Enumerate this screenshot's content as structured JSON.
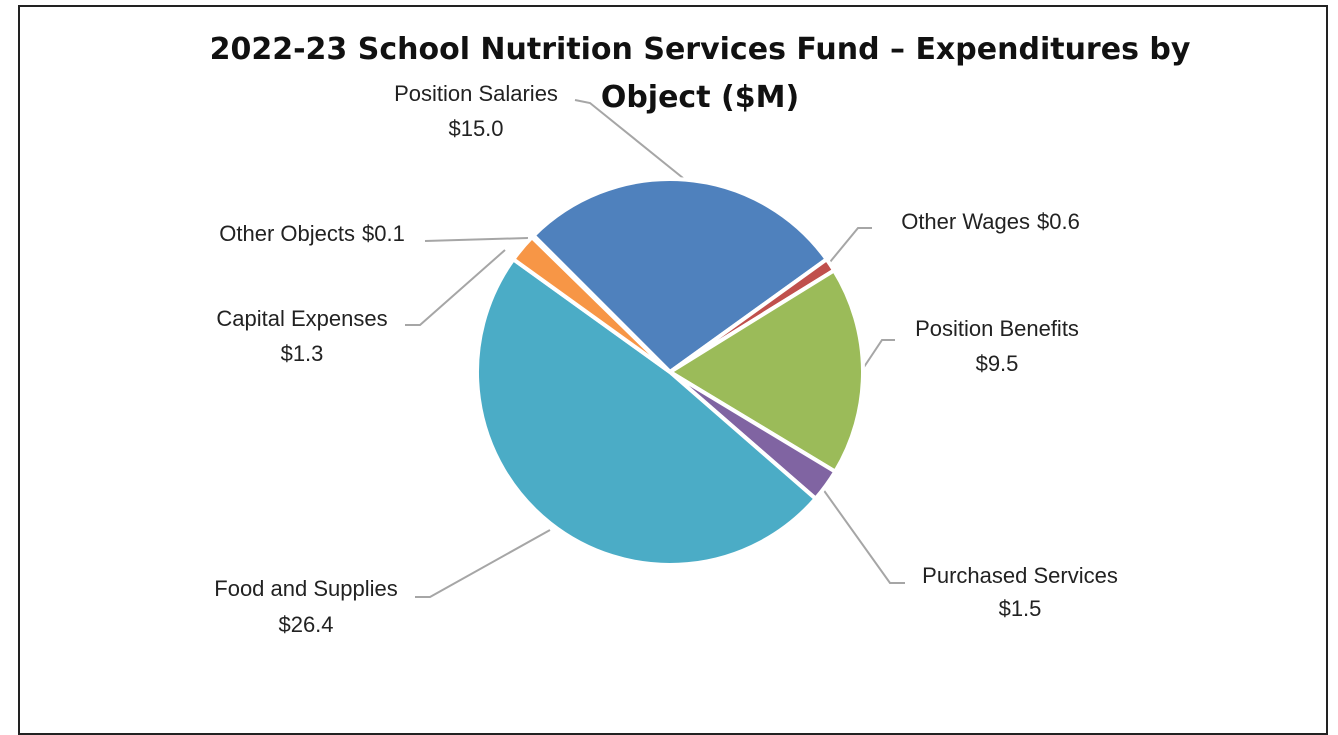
{
  "chart_data": {
    "type": "pie",
    "title": "2022-23 School Nutrition Services Fund – Expenditures by Object ($M)",
    "categories": [
      "Position Salaries",
      "Other Wages",
      "Position Benefits",
      "Purchased Services",
      "Food and Supplies",
      "Capital Expenses",
      "Other Objects"
    ],
    "values": [
      15.0,
      0.6,
      9.5,
      1.5,
      26.4,
      1.3,
      0.1
    ],
    "value_labels": [
      "$15.0",
      "$0.6",
      "$9.5",
      "$1.5",
      "$26.4",
      "$1.3",
      "$0.1"
    ],
    "colors": [
      "#4f81bd",
      "#c0504d",
      "#9bbb59",
      "#8064a2",
      "#4bacc6",
      "#f79646",
      "#2c4d75"
    ]
  }
}
